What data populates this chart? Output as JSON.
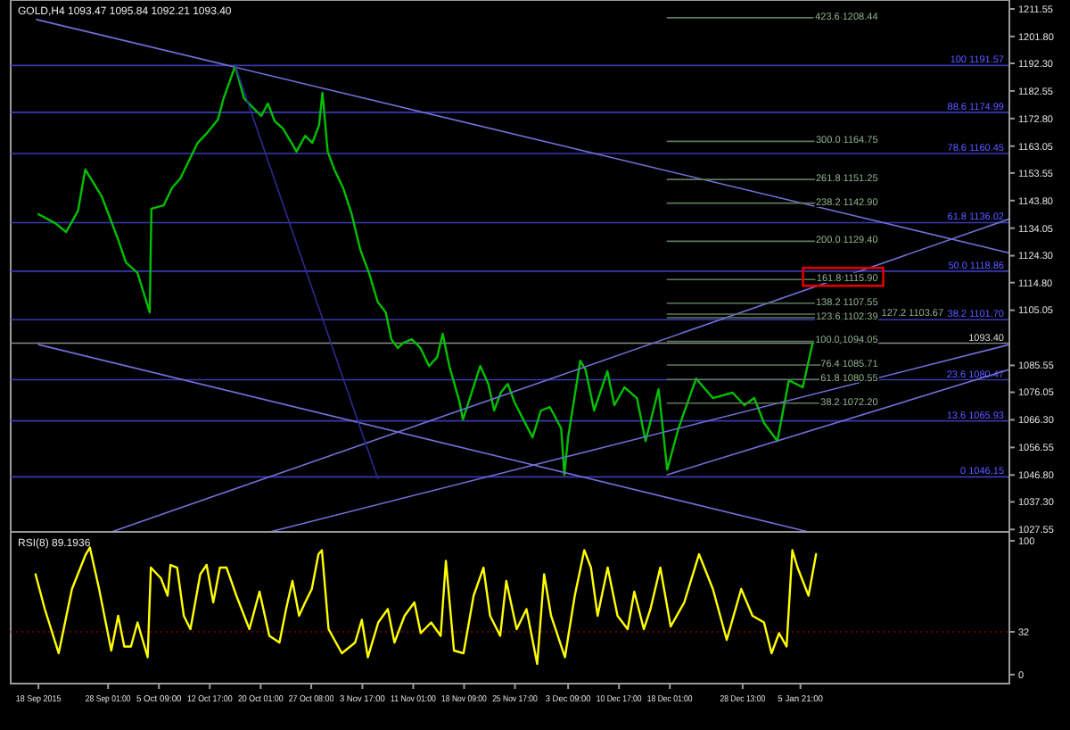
{
  "chart_data": [
    {
      "type": "line",
      "title": "GOLD,H4 1093.47 1095.84 1092.21 1093.40",
      "xlim": [
        "2015-09-14T00:00",
        "2016-02-05T00:00"
      ],
      "ylim": [
        1026.7,
        1214.7
      ],
      "tick_labels": "y",
      "line_style": "solid",
      "xticks": [
        {
          "value": "2015-09-18T00:00",
          "label": null
        },
        {
          "value": "2015-09-28T01:00",
          "label": null
        },
        {
          "value": "2015-10-05T09:00",
          "label": null
        },
        {
          "value": "2015-10-12T17:00",
          "label": null
        },
        {
          "value": "2015-10-20T01:00",
          "label": null
        },
        {
          "value": "2015-10-27T08:00",
          "label": null
        },
        {
          "value": "2015-11-03T17:00",
          "label": null
        },
        {
          "value": "2015-11-11T01:00",
          "label": null
        },
        {
          "value": "2015-11-18T09:00",
          "label": null
        },
        {
          "value": "2015-11-25T17:00",
          "label": null
        },
        {
          "value": "2015-12-03T09:00",
          "label": null
        },
        {
          "value": "2015-12-10T17:00",
          "label": null
        },
        {
          "value": "2015-12-18T01:00",
          "label": null
        },
        {
          "value": "2015-12-28T13:00",
          "label": null
        },
        {
          "value": "2016-01-05T21:00",
          "label": null
        }
      ],
      "yticks": [
        {
          "value": 1211.55,
          "label": "1211.55"
        },
        {
          "value": 1201.8,
          "label": "1201.80"
        },
        {
          "value": 1192.3,
          "label": "1192.30"
        },
        {
          "value": 1182.55,
          "label": "1182.55"
        },
        {
          "value": 1172.8,
          "label": "1172.80"
        },
        {
          "value": 1163.05,
          "label": "1163.05"
        },
        {
          "value": 1153.55,
          "label": "1153.55"
        },
        {
          "value": 1143.8,
          "label": "1143.80"
        },
        {
          "value": 1134.05,
          "label": "1134.05"
        },
        {
          "value": 1124.3,
          "label": "1124.30"
        },
        {
          "value": 1114.8,
          "label": "1114.80"
        },
        {
          "value": 1105.05,
          "label": "1105.05"
        },
        {
          "value": 1085.55,
          "label": "1085.55"
        },
        {
          "value": 1076.05,
          "label": "1076.05"
        },
        {
          "value": 1066.3,
          "label": "1066.30"
        },
        {
          "value": 1056.55,
          "label": "1056.55"
        },
        {
          "value": 1046.8,
          "label": "1046.80"
        },
        {
          "value": 1037.3,
          "label": "1037.30"
        },
        {
          "value": 1027.55,
          "label": "1027.55"
        }
      ],
      "series": [
        {
          "color": "#00c000",
          "x": [
            "2015-09-18T00:00",
            "2015-09-20T10:00",
            "2015-09-22T00:00",
            "2015-09-23T17:00",
            "2015-09-24T18:00",
            "2015-09-27T03:00",
            "2015-09-29T09:00",
            "2015-09-30T15:00",
            "2015-10-02T07:00",
            "2015-10-04T01:00",
            "2015-10-04T07:00",
            "2015-10-06T01:00",
            "2015-10-07T07:00",
            "2015-10-08T11:00",
            "2015-10-10T23:00",
            "2015-10-12T05:00",
            "2015-10-13T21:00",
            "2015-10-14T17:00",
            "2015-10-15T15:00",
            "2015-10-16T09:00",
            "2015-10-17T15:00",
            "2015-10-18T21:00",
            "2015-10-20T03:00",
            "2015-10-21T02:00",
            "2015-10-22T02:00",
            "2015-10-23T06:00",
            "2015-10-24T12:00",
            "2015-10-25T05:00",
            "2015-10-26T11:00",
            "2015-10-27T12:00",
            "2015-10-28T11:00",
            "2015-10-28T23:00",
            "2015-10-29T17:00",
            "2015-10-30T16:00",
            "2015-10-31T22:00",
            "2015-11-02T04:00",
            "2015-11-03T10:00",
            "2015-11-04T16:00",
            "2015-11-05T22:00",
            "2015-11-07T02:00",
            "2015-11-07T21:00",
            "2015-11-08T20:00",
            "2015-11-09T14:00",
            "2015-11-10T20:00",
            "2015-11-12T02:00",
            "2015-11-13T08:00",
            "2015-11-14T12:00",
            "2015-11-15T07:00",
            "2015-11-16T06:00",
            "2015-11-17T17:00",
            "2015-11-18T05:00",
            "2015-11-19T11:00",
            "2015-11-20T17:00",
            "2015-11-21T21:00",
            "2015-11-22T17:00",
            "2015-11-23T16:00",
            "2015-11-24T16:00",
            "2015-11-25T15:00",
            "2015-11-26T22:00",
            "2015-11-28T06:00",
            "2015-11-29T11:00",
            "2015-11-30T18:00",
            "2015-12-02T09:00",
            "2015-12-02T20:00",
            "2015-12-03T09:00",
            "2015-12-05T03:00",
            "2015-12-05T21:00",
            "2015-12-07T03:00",
            "2015-12-09T01:00",
            "2015-12-10T01:00",
            "2015-12-11T12:00",
            "2015-12-13T07:00",
            "2015-12-14T13:00",
            "2015-12-16T10:00",
            "2015-12-17T16:00",
            "2015-12-19T07:00",
            "2015-12-21T20:00",
            "2015-12-24T06:00",
            "2015-12-27T02:00",
            "2015-12-28T19:00",
            "2015-12-30T05:00",
            "2015-12-31T15:00",
            "2016-01-02T13:00",
            "2016-01-04T05:00",
            "2016-01-06T05:00",
            "2016-01-07T15:00"
          ],
          "values": [
            1139.0,
            1135.8,
            1132.7,
            1140.2,
            1154.8,
            1145.3,
            1130.8,
            1121.9,
            1118.2,
            1104.3,
            1140.9,
            1142.1,
            1148.4,
            1151.6,
            1164.2,
            1167.4,
            1172.4,
            1180.0,
            1186.3,
            1191.4,
            1180.0,
            1176.8,
            1173.7,
            1178.1,
            1171.8,
            1169.3,
            1164.2,
            1161.1,
            1166.7,
            1164.2,
            1170.5,
            1181.9,
            1161.1,
            1154.8,
            1148.4,
            1139.0,
            1126.4,
            1118.2,
            1108.0,
            1104.3,
            1094.8,
            1091.7,
            1093.5,
            1094.8,
            1091.7,
            1085.3,
            1088.5,
            1096.7,
            1085.3,
            1072.7,
            1066.4,
            1075.9,
            1085.3,
            1079.0,
            1069.6,
            1075.9,
            1079.0,
            1072.7,
            1066.4,
            1060.1,
            1069.6,
            1070.8,
            1063.3,
            1046.9,
            1060.1,
            1087.2,
            1084.1,
            1069.6,
            1083.5,
            1071.5,
            1077.8,
            1074.0,
            1058.8,
            1077.1,
            1048.7,
            1063.3,
            1080.9,
            1074.0,
            1075.9,
            1071.5,
            1074.0,
            1065.2,
            1058.8,
            1080.3,
            1077.8,
            1093.4
          ]
        },
        {
          "color": "#7070d8",
          "x": [
            "2015-09-17T17:00",
            "2016-02-05T00:00"
          ],
          "values": [
            1207.8,
            1125.3
          ]
        },
        {
          "color": "#7070d8",
          "x": [
            "2015-09-18T00:00",
            "2016-01-07T01:00"
          ],
          "values": [
            1092.9,
            1026.7
          ]
        },
        {
          "color": "#7070d8",
          "x": [
            "2015-09-28T13:00",
            "2016-02-05T00:00"
          ],
          "values": [
            1026.7,
            1137.3
          ]
        },
        {
          "color": "#7070d8",
          "x": [
            "2015-10-21T09:00",
            "2016-02-05T00:00"
          ],
          "values": [
            1026.7,
            1092.9
          ]
        },
        {
          "color": "#7070d8",
          "x": [
            "2015-12-17T16:00",
            "2016-02-05T00:00"
          ],
          "values": [
            1046.9,
            1084.1
          ]
        },
        {
          "color": "#2a2a90",
          "x": [
            "2015-10-16T09:00",
            "2015-11-05T22:00"
          ],
          "values": [
            1191.4,
            1045.6
          ]
        },
        {
          "color": "#5c7a5c",
          "x": [
            "2015-12-17T16:00",
            "2016-01-17T01:00"
          ],
          "values": [
            1208.44,
            1208.44
          ]
        },
        {
          "color": "#5c7a5c",
          "x": [
            "2015-12-17T16:00",
            "2016-01-17T01:00"
          ],
          "values": [
            1164.75,
            1164.75
          ]
        },
        {
          "color": "#5c7a5c",
          "x": [
            "2015-12-17T16:00",
            "2016-01-17T01:00"
          ],
          "values": [
            1151.25,
            1151.25
          ]
        },
        {
          "color": "#5c7a5c",
          "x": [
            "2015-12-17T16:00",
            "2016-01-17T01:00"
          ],
          "values": [
            1142.9,
            1142.9
          ]
        },
        {
          "color": "#5c7a5c",
          "x": [
            "2015-12-17T16:00",
            "2016-01-17T01:00"
          ],
          "values": [
            1129.4,
            1129.4
          ]
        },
        {
          "color": "#5c7a5c",
          "x": [
            "2015-12-17T16:00",
            "2016-01-17T01:00"
          ],
          "values": [
            1115.9,
            1115.9
          ]
        },
        {
          "color": "#5c7a5c",
          "x": [
            "2015-12-17T16:00",
            "2016-01-17T01:00"
          ],
          "values": [
            1107.55,
            1107.55
          ]
        },
        {
          "color": "#5c7a5c",
          "x": [
            "2015-12-17T16:00",
            "2016-01-17T01:00"
          ],
          "values": [
            1103.67,
            1103.67
          ]
        },
        {
          "color": "#5c7a5c",
          "x": [
            "2015-12-17T16:00",
            "2016-01-17T01:00"
          ],
          "values": [
            1102.39,
            1102.39
          ]
        },
        {
          "color": "#5c7a5c",
          "x": [
            "2015-12-17T16:00",
            "2016-01-17T01:00"
          ],
          "values": [
            1094.05,
            1094.05
          ]
        },
        {
          "color": "#5c7a5c",
          "x": [
            "2015-12-17T16:00",
            "2016-01-17T01:00"
          ],
          "values": [
            1085.71,
            1085.71
          ]
        },
        {
          "color": "#5c7a5c",
          "x": [
            "2015-12-17T16:00",
            "2016-01-17T01:00"
          ],
          "values": [
            1080.55,
            1080.55
          ]
        },
        {
          "color": "#5c7a5c",
          "x": [
            "2015-12-17T16:00",
            "2016-01-17T01:00"
          ],
          "values": [
            1072.2,
            1072.2
          ]
        }
      ],
      "ref_lines": [
        {
          "axis": "y",
          "value": 1191.57,
          "label": "100 1191.57",
          "color": "#3a3ab0"
        },
        {
          "axis": "y",
          "value": 1174.99,
          "label": "88.6 1174.99",
          "color": "#3a3ab0"
        },
        {
          "axis": "y",
          "value": 1160.45,
          "label": "78.6 1160.45",
          "color": "#3a3ab0"
        },
        {
          "axis": "y",
          "value": 1136.02,
          "label": "61.8 1136.02",
          "color": "#3a3ab0"
        },
        {
          "axis": "y",
          "value": 1118.86,
          "label": "50.0 1118.86",
          "color": "#3a3ab0"
        },
        {
          "axis": "y",
          "value": 1101.7,
          "label": "38.2 1101.70",
          "color": "#3a3ab0"
        },
        {
          "axis": "y",
          "value": 1080.47,
          "label": "23.6 1080.47",
          "color": "#3a3ab0"
        },
        {
          "axis": "y",
          "value": 1065.93,
          "label": "13.6 1065.93",
          "color": "#3a3ab0"
        },
        {
          "axis": "y",
          "value": 1046.15,
          "label": "0 1046.15",
          "color": "#3a3ab0"
        },
        {
          "axis": "y",
          "value": 1093.4,
          "label": "1093.40",
          "color": "#8a8a8a"
        }
      ],
      "annotations": [
        {
          "text": "423.6 1208.44",
          "x": "2016-01-17T01:00",
          "y": 1208.44
        },
        {
          "text": "300.0 1164.75",
          "x": "2016-01-17T01:00",
          "y": 1164.75
        },
        {
          "text": "261.8 1151.25",
          "x": "2016-01-17T01:00",
          "y": 1151.25
        },
        {
          "text": "238.2 1142.90",
          "x": "2016-01-17T01:00",
          "y": 1142.9
        },
        {
          "text": "200.0 1129.40",
          "x": "2016-01-17T01:00",
          "y": 1129.4
        },
        {
          "text": "161.8 1115.90",
          "x": "2016-01-17T01:00",
          "y": 1115.9
        },
        {
          "text": "138.2 1107.55",
          "x": "2016-01-17T01:00",
          "y": 1107.55
        },
        {
          "text": "127.2 1103.67",
          "x": "2016-01-17T01:00",
          "y": 1103.67
        },
        {
          "text": "123.6 1102.39",
          "x": "2016-01-17T01:00",
          "y": 1102.39
        },
        {
          "text": "100.0 1094.05",
          "x": "2016-01-17T01:00",
          "y": 1094.05
        },
        {
          "text": "76.4 1085.71",
          "x": "2016-01-17T01:00",
          "y": 1085.71
        },
        {
          "text": "61.8 1080.55",
          "x": "2016-01-17T01:00",
          "y": 1080.55
        },
        {
          "text": "38.2 1072.20",
          "x": "2016-01-17T01:00",
          "y": 1072.2
        }
      ]
    },
    {
      "type": "line",
      "title": "RSI(8) 89.1936",
      "xlim": [
        "2015-09-14T00:00",
        "2016-02-05T00:00"
      ],
      "ylim": [
        -6.7,
        106.7
      ],
      "line_style": "solid",
      "xticks": [
        {
          "value": "2015-09-18T00:00",
          "label": "18 Sep 2015"
        },
        {
          "value": "2015-09-28T01:00",
          "label": "28 Sep 01:00"
        },
        {
          "value": "2015-10-05T09:00",
          "label": "5 Oct 09:00"
        },
        {
          "value": "2015-10-12T17:00",
          "label": "12 Oct 17:00"
        },
        {
          "value": "2015-10-20T01:00",
          "label": "20 Oct 01:00"
        },
        {
          "value": "2015-10-27T08:00",
          "label": "27 Oct 08:00"
        },
        {
          "value": "2015-11-03T17:00",
          "label": "3 Nov 17:00"
        },
        {
          "value": "2015-11-11T01:00",
          "label": "11 Nov 01:00"
        },
        {
          "value": "2015-11-18T09:00",
          "label": "18 Nov 09:00"
        },
        {
          "value": "2015-11-25T17:00",
          "label": "25 Nov 17:00"
        },
        {
          "value": "2015-12-03T09:00",
          "label": "3 Dec 09:00"
        },
        {
          "value": "2015-12-10T17:00",
          "label": "10 Dec 17:00"
        },
        {
          "value": "2015-12-18T01:00",
          "label": "18 Dec 01:00"
        },
        {
          "value": "2015-12-28T13:00",
          "label": "28 Dec 13:00"
        },
        {
          "value": "2016-01-05T21:00",
          "label": "5 Jan 21:00"
        }
      ],
      "yticks": [
        0,
        32,
        100
      ],
      "series": [
        {
          "color": "#ffff00",
          "x": [
            "2015-09-17T14:00",
            "2015-09-18T22:00",
            "2015-09-20T22:00",
            "2015-09-22T20:00",
            "2015-09-24T20:00",
            "2015-09-25T10:00",
            "2015-09-26T18:00",
            "2015-09-28T12:00",
            "2015-09-29T12:00",
            "2015-09-30T09:00",
            "2015-10-01T08:00",
            "2015-10-02T07:00",
            "2015-10-03T18:00",
            "2015-10-04T05:00",
            "2015-10-05T16:00",
            "2015-10-06T15:00",
            "2015-10-07T01:00",
            "2015-10-08T00:00",
            "2015-10-08T23:00",
            "2015-10-09T22:00",
            "2015-10-11T08:00",
            "2015-10-12T06:00",
            "2015-10-13T05:00",
            "2015-10-14T04:00",
            "2015-10-15T03:00",
            "2015-10-16T13:00",
            "2015-10-18T10:00",
            "2015-10-19T21:00",
            "2015-10-21T07:00",
            "2015-10-22T18:00",
            "2015-10-23T17:00",
            "2015-10-24T15:00",
            "2015-10-25T14:00",
            "2015-10-26T11:00",
            "2015-10-27T10:00",
            "2015-10-28T09:00",
            "2015-10-28T21:00",
            "2015-10-29T20:00",
            "2015-10-31T18:00",
            "2015-11-02T16:00",
            "2015-11-03T15:00",
            "2015-11-04T12:00",
            "2015-11-06T00:00",
            "2015-11-07T09:00",
            "2015-11-08T08:00",
            "2015-11-09T19:00",
            "2015-11-11T05:00",
            "2015-11-12T03:00",
            "2015-11-13T15:00",
            "2015-11-15T00:00",
            "2015-11-15T18:00",
            "2015-11-16T22:00",
            "2015-11-18T07:00",
            "2015-11-19T18:00",
            "2015-11-21T04:00",
            "2015-11-22T03:00",
            "2015-11-23T14:00",
            "2015-11-24T11:00",
            "2015-11-25T23:00",
            "2015-11-27T09:00",
            "2015-11-28T22:00",
            "2015-11-29T22:00",
            "2015-11-30T22:00",
            "2015-12-02T22:00",
            "2015-12-04T08:00",
            "2015-12-05T17:00",
            "2015-12-06T16:00",
            "2015-12-07T15:00",
            "2015-12-09T02:00",
            "2015-12-10T12:00",
            "2015-12-11T23:00",
            "2015-12-12T22:00",
            "2015-12-14T07:00",
            "2015-12-15T06:00",
            "2015-12-16T16:00",
            "2015-12-18T04:00",
            "2015-12-20T03:00",
            "2015-12-22T06:00",
            "2015-12-24T06:00",
            "2015-12-26T06:00",
            "2015-12-28T08:00",
            "2015-12-29T23:00",
            "2015-12-31T15:00",
            "2016-01-01T17:00",
            "2016-01-02T19:00",
            "2016-01-03T21:00",
            "2016-01-04T17:00",
            "2016-01-05T11:00",
            "2016-01-07T01:00",
            "2016-01-08T03:00"
          ],
          "values": [
            75,
            49,
            16,
            64,
            90,
            95,
            64,
            18,
            44,
            21,
            21,
            39,
            13,
            80,
            72,
            59,
            82,
            80,
            44,
            34,
            75,
            82,
            54,
            80,
            80,
            59,
            34,
            62,
            29,
            24,
            49,
            70,
            44,
            54,
            64,
            90,
            93,
            34,
            16,
            24,
            41,
            13,
            39,
            49,
            24,
            44,
            54,
            31,
            39,
            29,
            85,
            18,
            16,
            59,
            80,
            44,
            29,
            70,
            34,
            49,
            8,
            75,
            44,
            13,
            59,
            93,
            80,
            44,
            80,
            44,
            34,
            62,
            34,
            49,
            80,
            36,
            54,
            90,
            64,
            26,
            64,
            44,
            39,
            16,
            31,
            21,
            93,
            80,
            59,
            90
          ]
        }
      ],
      "ref_lines": [
        {
          "axis": "y",
          "value": 32,
          "color": "#800000",
          "line_style": "dotted"
        }
      ]
    }
  ]
}
